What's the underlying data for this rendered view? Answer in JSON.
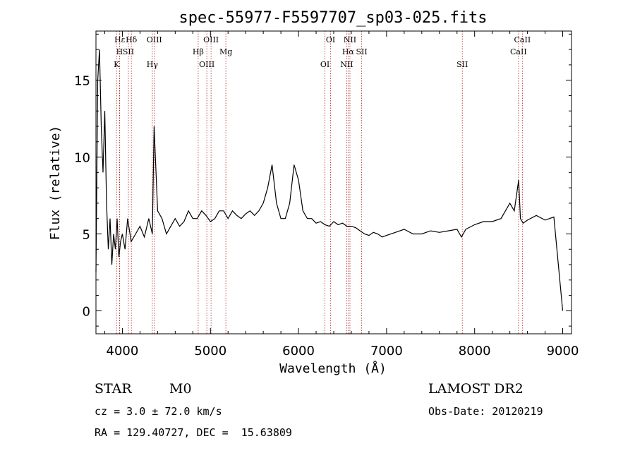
{
  "chart_data": {
    "type": "line",
    "title": "spec-55977-F5597707_sp03-025.fits",
    "xlabel": "Wavelength (Å)",
    "ylabel": "Flux (relative)",
    "xlim": [
      3700,
      9100
    ],
    "ylim": [
      -1.5,
      18.2
    ],
    "x_ticks": [
      4000,
      5000,
      6000,
      7000,
      8000,
      9000
    ],
    "y_ticks": [
      0,
      5,
      10,
      15
    ],
    "grid": false,
    "series": [
      {
        "color": "#000000",
        "x": [
          3700,
          3720,
          3740,
          3760,
          3780,
          3800,
          3820,
          3840,
          3860,
          3880,
          3900,
          3920,
          3940,
          3960,
          3980,
          4000,
          4030,
          4060,
          4100,
          4150,
          4200,
          4250,
          4300,
          4340,
          4360,
          4400,
          4450,
          4500,
          4550,
          4600,
          4650,
          4700,
          4750,
          4800,
          4850,
          4900,
          4950,
          5000,
          5050,
          5100,
          5150,
          5200,
          5250,
          5300,
          5350,
          5400,
          5450,
          5500,
          5550,
          5600,
          5650,
          5700,
          5750,
          5800,
          5850,
          5900,
          5950,
          6000,
          6050,
          6100,
          6150,
          6200,
          6250,
          6300,
          6350,
          6400,
          6450,
          6500,
          6550,
          6600,
          6650,
          6700,
          6750,
          6800,
          6850,
          6900,
          6950,
          7000,
          7100,
          7200,
          7300,
          7400,
          7500,
          7600,
          7700,
          7800,
          7850,
          7900,
          8000,
          8100,
          8200,
          8300,
          8400,
          8450,
          8500,
          8520,
          8550,
          8600,
          8700,
          8800,
          8900,
          9000
        ],
        "y": [
          2.5,
          15,
          17,
          12,
          9,
          13,
          7,
          4,
          6,
          3,
          5,
          4,
          6,
          3.5,
          4.5,
          5,
          4,
          6,
          4.5,
          5,
          5.5,
          4.8,
          6,
          5,
          12,
          6.5,
          6,
          5,
          5.5,
          6,
          5.5,
          5.8,
          6.5,
          6,
          6,
          6.5,
          6.2,
          5.8,
          6,
          6.5,
          6.5,
          6,
          6.5,
          6.2,
          6,
          6.3,
          6.5,
          6.2,
          6.5,
          7,
          8,
          9.5,
          7,
          6,
          6,
          7,
          9.5,
          8.5,
          6.5,
          6,
          6,
          5.7,
          5.8,
          5.6,
          5.5,
          5.8,
          5.6,
          5.7,
          5.5,
          5.5,
          5.4,
          5.2,
          5.0,
          4.9,
          5.1,
          5.0,
          4.8,
          4.9,
          5.1,
          5.3,
          5.0,
          5.0,
          5.2,
          5.1,
          5.2,
          5.3,
          4.8,
          5.3,
          5.6,
          5.8,
          5.8,
          6.0,
          7.0,
          6.5,
          8.5,
          6.0,
          5.7,
          5.9,
          6.2,
          5.9,
          6.1,
          0
        ]
      }
    ],
    "line_markers": [
      {
        "name": "Hε",
        "x": 3970
      },
      {
        "name": "H",
        "x": 3968
      },
      {
        "name": "K",
        "x": 3934
      },
      {
        "name": "Hδ",
        "x": 4102
      },
      {
        "name": "SII",
        "x": 4068
      },
      {
        "name": "Hγ",
        "x": 4340
      },
      {
        "name": "OIII",
        "x": 4363
      },
      {
        "name": "Hβ",
        "x": 4861
      },
      {
        "name": "OIII",
        "x": 4959
      },
      {
        "name": "OIII",
        "x": 5007
      },
      {
        "name": "Mg",
        "x": 5175
      },
      {
        "name": "OI",
        "x": 6300
      },
      {
        "name": "OI",
        "x": 6364
      },
      {
        "name": "Hα",
        "x": 6563
      },
      {
        "name": "NII",
        "x": 6548
      },
      {
        "name": "NII",
        "x": 6584
      },
      {
        "name": "SII",
        "x": 6717
      },
      {
        "name": "SII",
        "x": 7860
      },
      {
        "name": "CaII",
        "x": 8542
      },
      {
        "name": "CaII",
        "x": 8498
      }
    ]
  },
  "info": {
    "object_class": "STAR",
    "subclass": "M0",
    "survey": "LAMOST DR2",
    "redshift": "cz = 3.0 ± 72.0 km/s",
    "obs_date": "Obs-Date: 20120219",
    "coords": "RA = 129.40727, DEC =  15.63809"
  },
  "colors": {
    "marker_line": "#b22222",
    "spectrum": "#000000"
  }
}
